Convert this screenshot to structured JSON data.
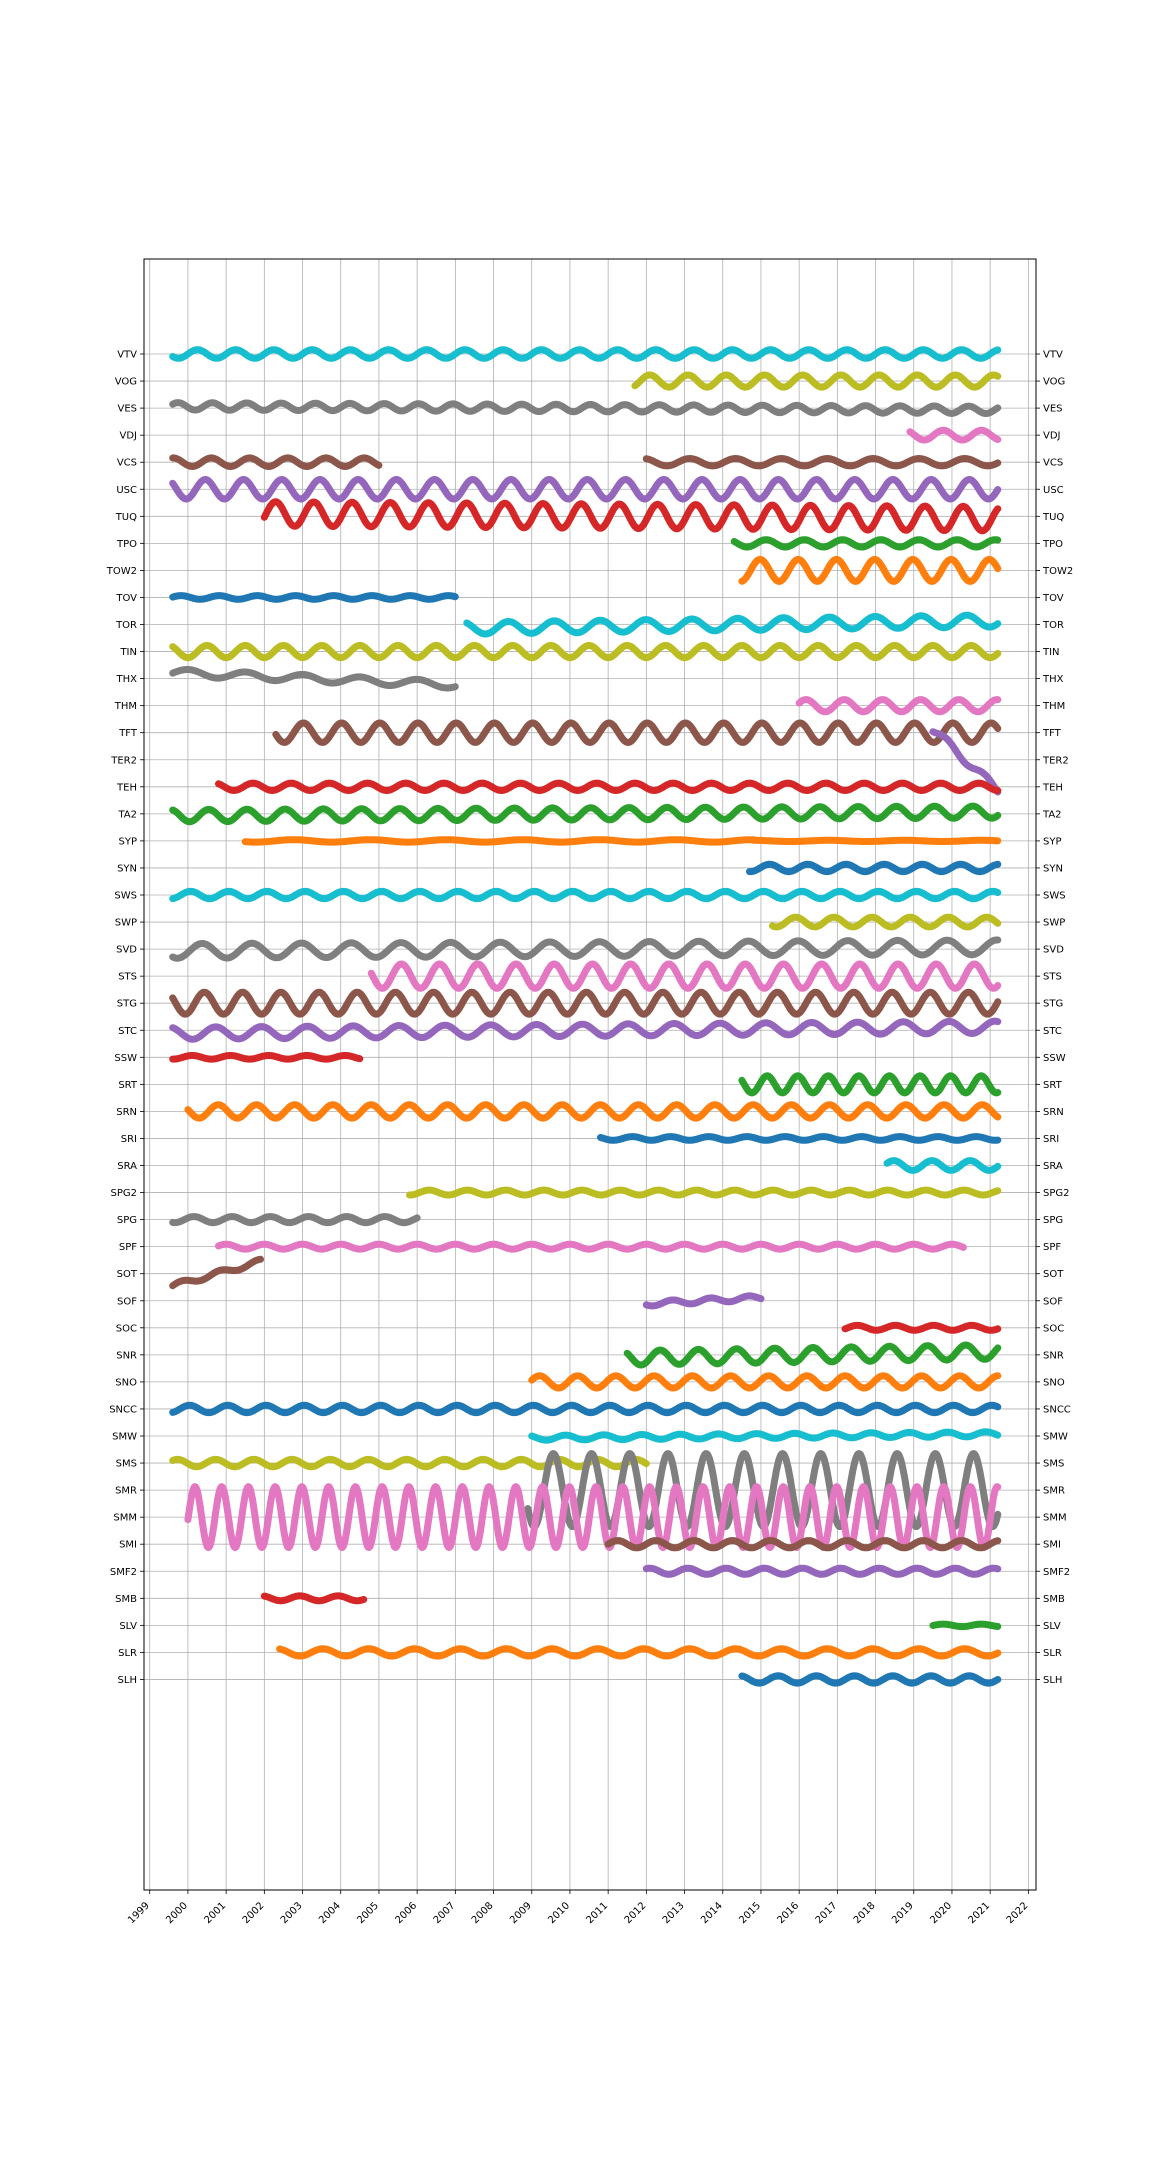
{
  "chart_data": {
    "type": "scatter",
    "title": "",
    "xlabel": "",
    "ylabel": "",
    "grid": true,
    "x_tick_labels": [
      "1999",
      "2000",
      "2001",
      "2002",
      "2003",
      "2004",
      "2005",
      "2006",
      "2007",
      "2008",
      "2009",
      "2010",
      "2011",
      "2012",
      "2013",
      "2014",
      "2015",
      "2016",
      "2017",
      "2018",
      "2019",
      "2020",
      "2021",
      "2022"
    ],
    "xlim": [
      1998.85,
      2022.2
    ],
    "y_tick_labels": [
      "VTV",
      "VOG",
      "VES",
      "VDJ",
      "VCS",
      "USC",
      "TUQ",
      "TPO",
      "TOW2",
      "TOV",
      "TOR",
      "TIN",
      "THX",
      "THM",
      "TFT",
      "TER2",
      "TEH",
      "TA2",
      "SYP",
      "SYN",
      "SWS",
      "SWP",
      "SVD",
      "STS",
      "STG",
      "STC",
      "SSW",
      "SRT",
      "SRN",
      "SRI",
      "SRA",
      "SPG2",
      "SPG",
      "SPF",
      "SOT",
      "SOF",
      "SOC",
      "SNR",
      "SNO",
      "SNCC",
      "SMW",
      "SMS",
      "SMR",
      "SMM",
      "SMI",
      "SMF2",
      "SMB",
      "SLV",
      "SLR",
      "SLH"
    ],
    "series": [
      {
        "label": "VTV",
        "color": "#17becf",
        "segments": [
          {
            "start": 1999.6,
            "end": 2021.2,
            "amp": 0.35,
            "period": 1.0,
            "drift": 0.0
          }
        ]
      },
      {
        "label": "VOG",
        "color": "#bcbd22",
        "segments": [
          {
            "start": 2011.7,
            "end": 2021.2,
            "amp": 0.5,
            "period": 1.0,
            "drift": 0.0
          }
        ]
      },
      {
        "label": "VES",
        "color": "#7f7f7f",
        "segments": [
          {
            "start": 1999.6,
            "end": 2021.2,
            "amp": 0.3,
            "period": 0.9,
            "drift": -0.3
          }
        ]
      },
      {
        "label": "VDJ",
        "color": "#e377c2",
        "segments": [
          {
            "start": 2018.9,
            "end": 2021.2,
            "amp": 0.4,
            "period": 1.0,
            "drift": 0.0
          }
        ]
      },
      {
        "label": "VCS",
        "color": "#8c564b",
        "segments": [
          {
            "start": 1999.6,
            "end": 2005.0,
            "amp": 0.35,
            "period": 1.0,
            "drift": 0.0
          },
          {
            "start": 2012.0,
            "end": 2021.2,
            "amp": 0.3,
            "period": 1.2,
            "drift": 0.0
          }
        ]
      },
      {
        "label": "USC",
        "color": "#9467bd",
        "segments": [
          {
            "start": 1999.6,
            "end": 2021.2,
            "amp": 0.8,
            "period": 1.0,
            "drift": 0.0
          }
        ]
      },
      {
        "label": "TUQ",
        "color": "#d62728",
        "segments": [
          {
            "start": 2002.0,
            "end": 2021.2,
            "amp": 1.0,
            "period": 1.0,
            "drift": -0.4
          }
        ]
      },
      {
        "label": "TPO",
        "color": "#2ca02c",
        "segments": [
          {
            "start": 2014.3,
            "end": 2021.2,
            "amp": 0.3,
            "period": 1.0,
            "drift": 0.0
          }
        ]
      },
      {
        "label": "TOW2",
        "color": "#ff7f0e",
        "segments": [
          {
            "start": 2014.5,
            "end": 2021.2,
            "amp": 0.9,
            "period": 1.0,
            "drift": 0.0
          }
        ]
      },
      {
        "label": "TOV",
        "color": "#1f77b4",
        "segments": [
          {
            "start": 1999.6,
            "end": 2007.0,
            "amp": 0.15,
            "period": 1.0,
            "drift": 0.0
          }
        ]
      },
      {
        "label": "TOR",
        "color": "#17becf",
        "segments": [
          {
            "start": 2007.3,
            "end": 2021.2,
            "amp": 0.5,
            "period": 1.2,
            "drift": 0.6
          }
        ]
      },
      {
        "label": "TIN",
        "color": "#bcbd22",
        "segments": [
          {
            "start": 1999.6,
            "end": 2021.2,
            "amp": 0.5,
            "period": 1.0,
            "drift": 0.0
          }
        ]
      },
      {
        "label": "THX",
        "color": "#7f7f7f",
        "segments": [
          {
            "start": 1999.6,
            "end": 2007.0,
            "amp": 0.3,
            "period": 1.5,
            "drift": -1.0
          }
        ]
      },
      {
        "label": "THM",
        "color": "#e377c2",
        "segments": [
          {
            "start": 2016.0,
            "end": 2021.2,
            "amp": 0.5,
            "period": 1.0,
            "drift": 0.0
          }
        ]
      },
      {
        "label": "TFT",
        "color": "#8c564b",
        "segments": [
          {
            "start": 2002.3,
            "end": 2021.2,
            "amp": 0.8,
            "period": 1.0,
            "drift": 0.0
          }
        ]
      },
      {
        "label": "TER2",
        "color": "#9467bd",
        "segments": [
          {
            "start": 2019.5,
            "end": 2021.2,
            "amp": 0.3,
            "period": 1.0,
            "drift": -5.0
          }
        ]
      },
      {
        "label": "TEH",
        "color": "#d62728",
        "segments": [
          {
            "start": 2000.8,
            "end": 2021.2,
            "amp": 0.3,
            "period": 1.0,
            "drift": 0.0
          }
        ]
      },
      {
        "label": "TA2",
        "color": "#2ca02c",
        "segments": [
          {
            "start": 1999.6,
            "end": 2021.2,
            "amp": 0.5,
            "period": 1.0,
            "drift": 0.3
          }
        ]
      },
      {
        "label": "SYP",
        "color": "#ff7f0e",
        "segments": [
          {
            "start": 2001.5,
            "end": 2014.8,
            "amp": 0.1,
            "period": 2.0,
            "drift": 0.0
          },
          {
            "start": 2014.8,
            "end": 2021.2,
            "amp": 0.05,
            "period": 2.0,
            "drift": 0.0
          }
        ]
      },
      {
        "label": "SYN",
        "color": "#1f77b4",
        "segments": [
          {
            "start": 2014.7,
            "end": 2021.2,
            "amp": 0.3,
            "period": 1.0,
            "drift": 0.0
          }
        ]
      },
      {
        "label": "SWS",
        "color": "#17becf",
        "segments": [
          {
            "start": 1999.6,
            "end": 2021.2,
            "amp": 0.3,
            "period": 1.0,
            "drift": 0.0
          }
        ]
      },
      {
        "label": "SWP",
        "color": "#bcbd22",
        "segments": [
          {
            "start": 2015.3,
            "end": 2021.2,
            "amp": 0.4,
            "period": 1.0,
            "drift": 0.0
          }
        ]
      },
      {
        "label": "SVD",
        "color": "#7f7f7f",
        "segments": [
          {
            "start": 1999.6,
            "end": 2021.2,
            "amp": 0.6,
            "period": 1.3,
            "drift": 0.3
          }
        ]
      },
      {
        "label": "STS",
        "color": "#e377c2",
        "segments": [
          {
            "start": 2004.8,
            "end": 2021.2,
            "amp": 1.0,
            "period": 1.0,
            "drift": 0.0
          }
        ]
      },
      {
        "label": "STG",
        "color": "#8c564b",
        "segments": [
          {
            "start": 1999.6,
            "end": 2021.2,
            "amp": 0.9,
            "period": 1.0,
            "drift": 0.0
          }
        ]
      },
      {
        "label": "STC",
        "color": "#9467bd",
        "segments": [
          {
            "start": 1999.6,
            "end": 2021.2,
            "amp": 0.5,
            "period": 1.2,
            "drift": 0.5
          }
        ]
      },
      {
        "label": "SSW",
        "color": "#d62728",
        "segments": [
          {
            "start": 1999.6,
            "end": 2004.5,
            "amp": 0.15,
            "period": 1.0,
            "drift": 0.0
          }
        ]
      },
      {
        "label": "SRT",
        "color": "#2ca02c",
        "segments": [
          {
            "start": 2014.5,
            "end": 2021.2,
            "amp": 0.7,
            "period": 0.8,
            "drift": 0.0
          }
        ]
      },
      {
        "label": "SRN",
        "color": "#ff7f0e",
        "segments": [
          {
            "start": 2000.0,
            "end": 2021.2,
            "amp": 0.55,
            "period": 1.0,
            "drift": 0.0
          }
        ]
      },
      {
        "label": "SRI",
        "color": "#1f77b4",
        "segments": [
          {
            "start": 2010.8,
            "end": 2021.2,
            "amp": 0.15,
            "period": 1.0,
            "drift": 0.0
          }
        ]
      },
      {
        "label": "SRA",
        "color": "#17becf",
        "segments": [
          {
            "start": 2018.3,
            "end": 2021.2,
            "amp": 0.4,
            "period": 1.0,
            "drift": 0.0
          }
        ]
      },
      {
        "label": "SPG2",
        "color": "#bcbd22",
        "segments": [
          {
            "start": 2005.8,
            "end": 2021.2,
            "amp": 0.2,
            "period": 1.0,
            "drift": 0.0
          }
        ]
      },
      {
        "label": "SPG",
        "color": "#7f7f7f",
        "segments": [
          {
            "start": 1999.6,
            "end": 2006.0,
            "amp": 0.25,
            "period": 1.0,
            "drift": 0.0
          }
        ]
      },
      {
        "label": "SPF",
        "color": "#e377c2",
        "segments": [
          {
            "start": 2000.8,
            "end": 2020.3,
            "amp": 0.2,
            "period": 1.0,
            "drift": 0.0
          }
        ]
      },
      {
        "label": "SOT",
        "color": "#8c564b",
        "segments": [
          {
            "start": 1999.6,
            "end": 2001.9,
            "amp": 0.2,
            "period": 1.0,
            "drift": 2.0
          }
        ]
      },
      {
        "label": "SOF",
        "color": "#9467bd",
        "segments": [
          {
            "start": 2012.0,
            "end": 2015.0,
            "amp": 0.2,
            "period": 1.0,
            "drift": 0.5
          }
        ]
      },
      {
        "label": "SOC",
        "color": "#d62728",
        "segments": [
          {
            "start": 2017.2,
            "end": 2021.2,
            "amp": 0.2,
            "period": 1.0,
            "drift": 0.0
          }
        ]
      },
      {
        "label": "SNR",
        "color": "#2ca02c",
        "segments": [
          {
            "start": 2011.5,
            "end": 2021.2,
            "amp": 0.6,
            "period": 1.0,
            "drift": 0.5
          }
        ]
      },
      {
        "label": "SNO",
        "color": "#ff7f0e",
        "segments": [
          {
            "start": 2009.0,
            "end": 2021.2,
            "amp": 0.5,
            "period": 1.0,
            "drift": 0.0
          }
        ]
      },
      {
        "label": "SNCC",
        "color": "#1f77b4",
        "segments": [
          {
            "start": 1999.6,
            "end": 2021.2,
            "amp": 0.3,
            "period": 1.0,
            "drift": 0.0
          }
        ]
      },
      {
        "label": "SMW",
        "color": "#17becf",
        "segments": [
          {
            "start": 2009.0,
            "end": 2021.2,
            "amp": 0.2,
            "period": 1.0,
            "drift": 0.3
          }
        ]
      },
      {
        "label": "SMS",
        "color": "#bcbd22",
        "segments": [
          {
            "start": 1999.6,
            "end": 2012.0,
            "amp": 0.3,
            "period": 1.0,
            "drift": 0.0
          }
        ]
      },
      {
        "label": "SMR",
        "color": "#7f7f7f",
        "segments": [
          {
            "start": 2008.9,
            "end": 2021.2,
            "amp": 3.0,
            "period": 1.0,
            "drift": 0.0
          }
        ]
      },
      {
        "label": "SMM",
        "color": "#e377c2",
        "segments": [
          {
            "start": 2000.0,
            "end": 2021.2,
            "amp": 2.5,
            "period": 0.7,
            "drift": 0.0
          }
        ]
      },
      {
        "label": "SMI",
        "color": "#8c564b",
        "segments": [
          {
            "start": 2011.0,
            "end": 2021.2,
            "amp": 0.3,
            "period": 1.0,
            "drift": 0.0
          }
        ]
      },
      {
        "label": "SMF2",
        "color": "#9467bd",
        "segments": [
          {
            "start": 2012.0,
            "end": 2021.2,
            "amp": 0.25,
            "period": 1.0,
            "drift": 0.0
          }
        ]
      },
      {
        "label": "SMB",
        "color": "#d62728",
        "segments": [
          {
            "start": 2002.0,
            "end": 2004.6,
            "amp": 0.2,
            "period": 1.0,
            "drift": 0.0
          }
        ]
      },
      {
        "label": "SLV",
        "color": "#2ca02c",
        "segments": [
          {
            "start": 2019.5,
            "end": 2021.2,
            "amp": 0.1,
            "period": 1.0,
            "drift": 0.0
          }
        ]
      },
      {
        "label": "SLR",
        "color": "#ff7f0e",
        "segments": [
          {
            "start": 2002.4,
            "end": 2021.2,
            "amp": 0.3,
            "period": 1.2,
            "drift": 0.0
          }
        ]
      },
      {
        "label": "SLH",
        "color": "#1f77b4",
        "segments": [
          {
            "start": 2014.5,
            "end": 2021.2,
            "amp": 0.3,
            "period": 1.0,
            "drift": 0.0
          }
        ]
      }
    ]
  }
}
